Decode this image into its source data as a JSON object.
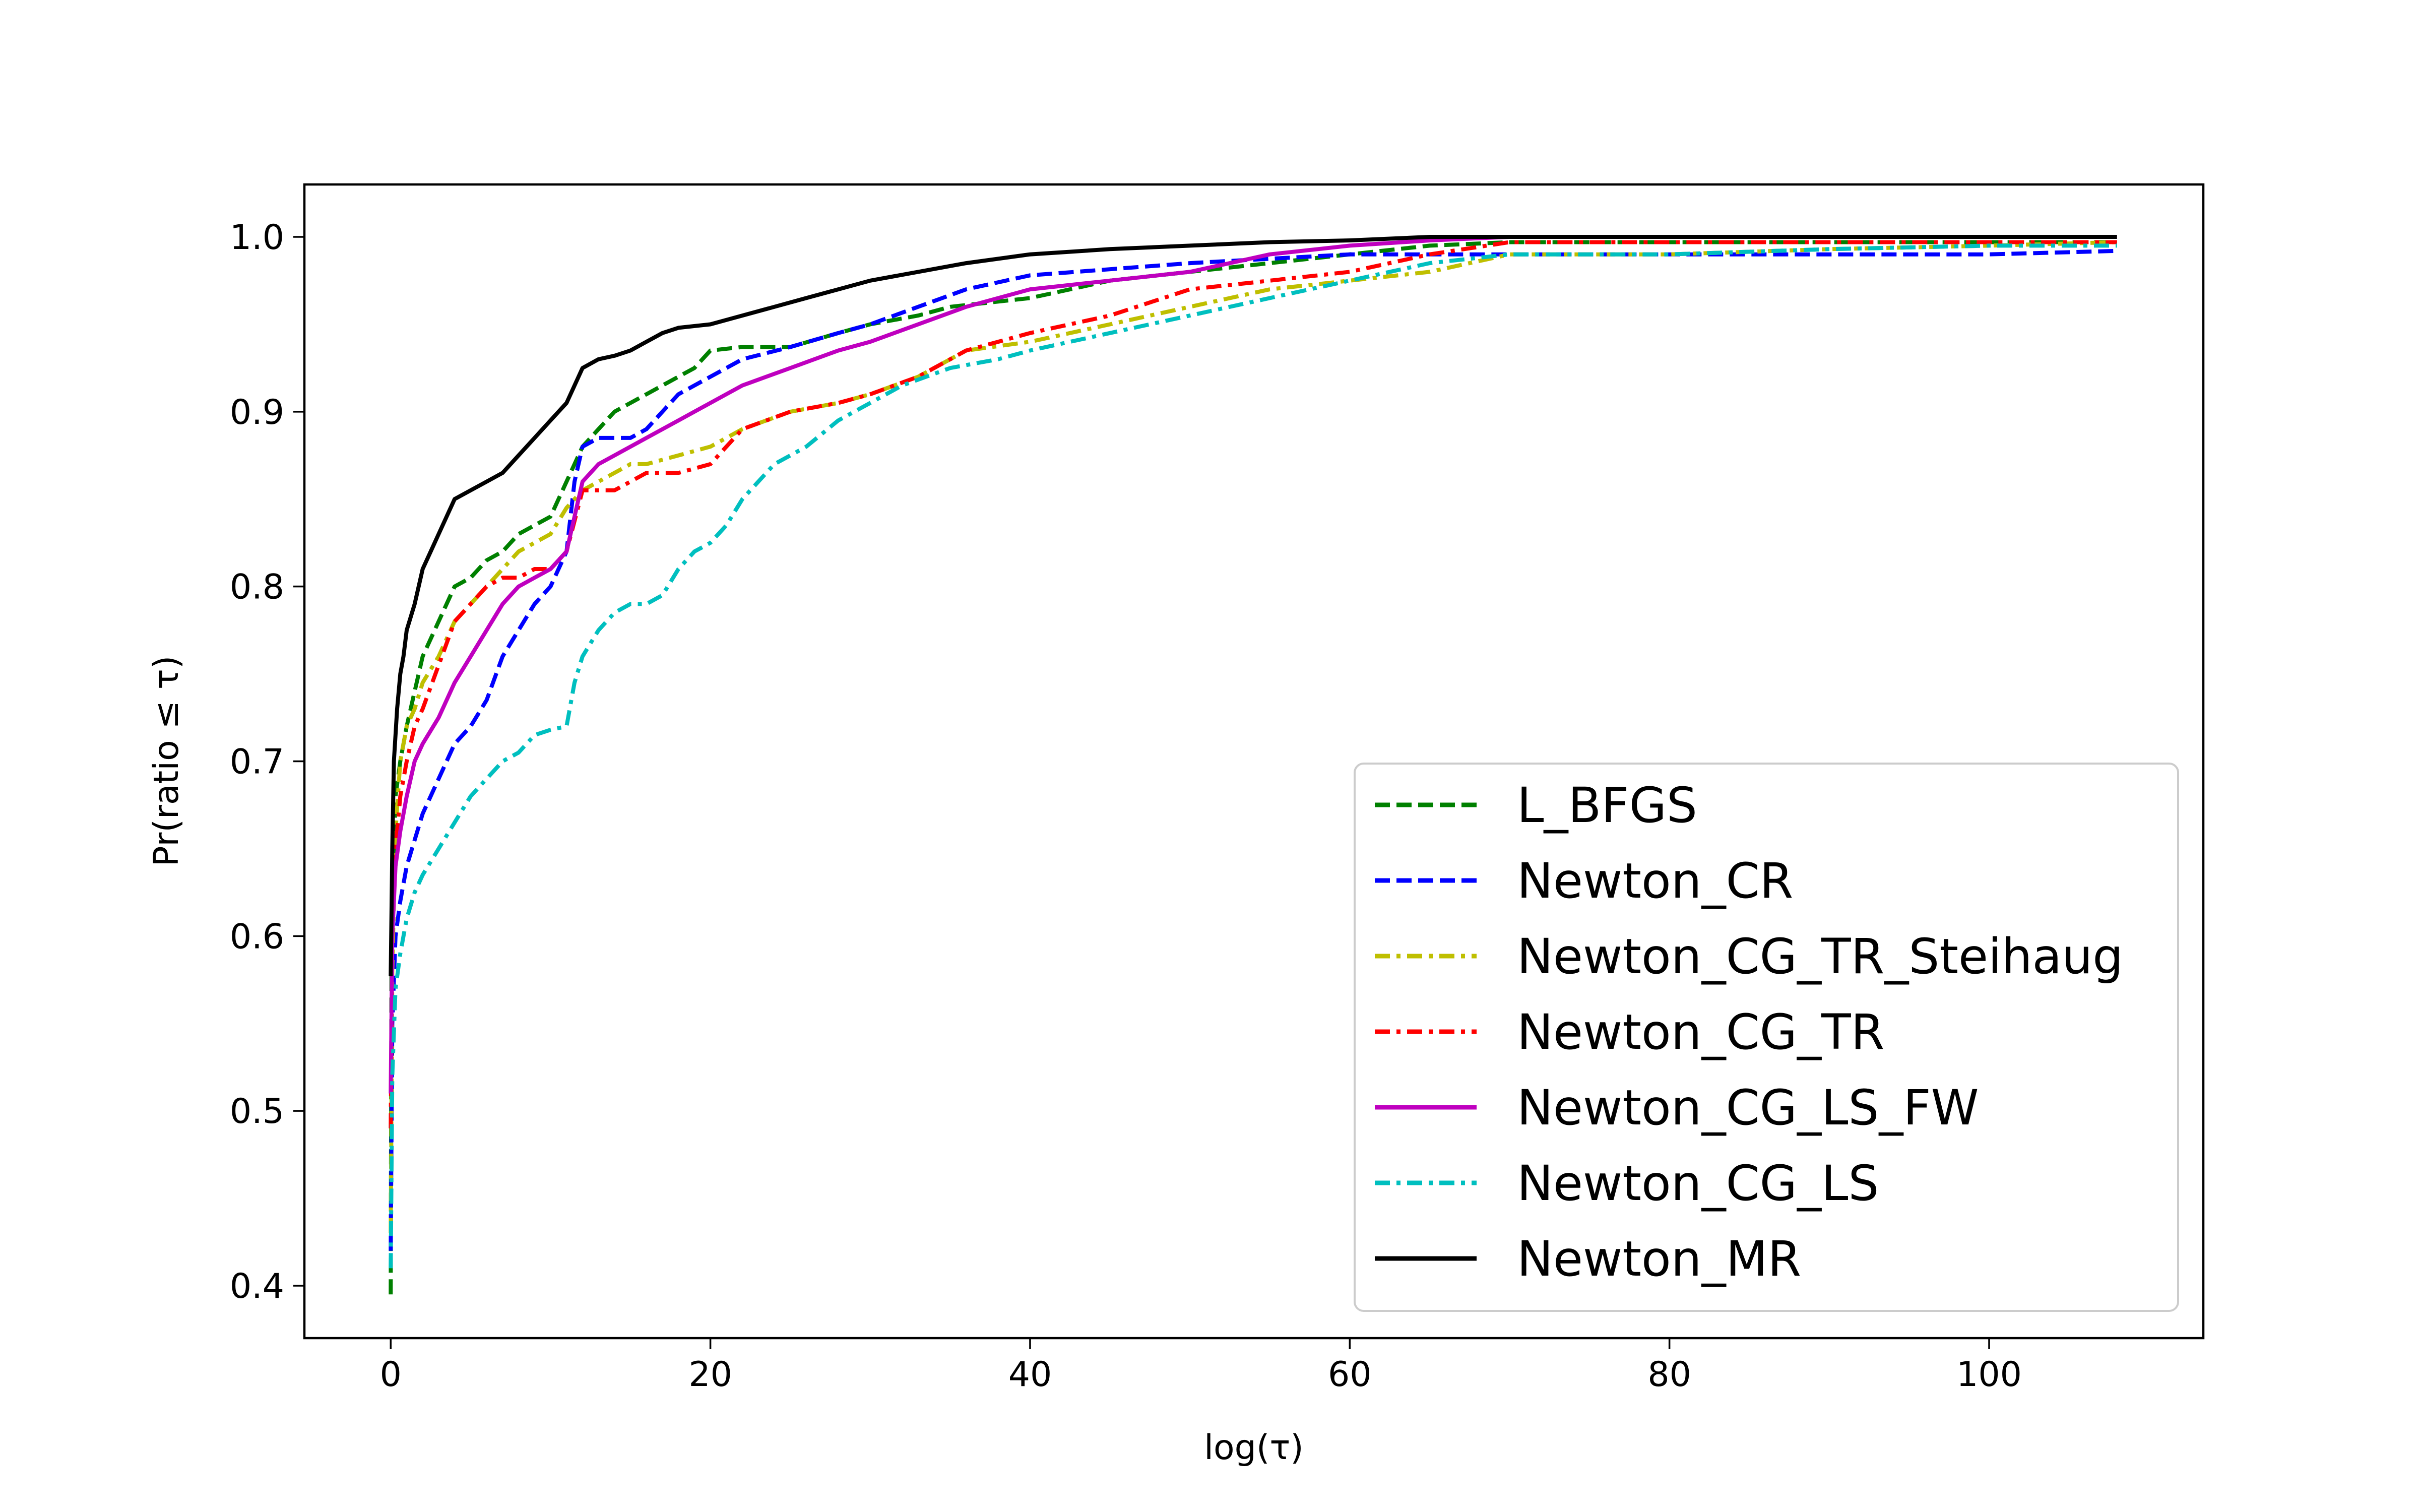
{
  "chart_data": {
    "type": "line",
    "xlabel": "log(τ)",
    "ylabel": "Pr(ratio ≤ τ)",
    "xlim": [
      -5.4,
      113.4
    ],
    "ylim": [
      0.37,
      1.03
    ],
    "xticks": [
      0,
      20,
      40,
      60,
      80,
      100
    ],
    "yticks": [
      0.4,
      0.5,
      0.6,
      0.7,
      0.8,
      0.9,
      1.0
    ],
    "xtick_labels": [
      "0",
      "20",
      "40",
      "60",
      "80",
      "100"
    ],
    "ytick_labels": [
      "0.4",
      "0.5",
      "0.6",
      "0.7",
      "0.8",
      "0.9",
      "1.0"
    ],
    "grid": false,
    "legend_position": "lower-right",
    "series": [
      {
        "name": "L_BFGS",
        "color": "#008000",
        "dash": "dashed",
        "x": [
          0,
          0.05,
          0.3,
          0.6,
          1,
          1.5,
          2,
          3,
          4,
          5,
          6,
          7,
          8,
          9,
          10,
          11,
          12,
          13,
          14,
          15,
          16,
          17,
          18,
          19,
          20,
          22,
          25,
          28,
          30,
          33,
          35,
          40,
          45,
          50,
          55,
          60,
          65,
          70,
          80,
          90,
          100,
          108
        ],
        "y": [
          0.395,
          0.6,
          0.68,
          0.7,
          0.72,
          0.74,
          0.76,
          0.78,
          0.8,
          0.805,
          0.815,
          0.82,
          0.83,
          0.835,
          0.84,
          0.86,
          0.88,
          0.89,
          0.9,
          0.905,
          0.91,
          0.915,
          0.92,
          0.925,
          0.935,
          0.937,
          0.937,
          0.945,
          0.95,
          0.955,
          0.96,
          0.965,
          0.975,
          0.98,
          0.985,
          0.99,
          0.995,
          0.997,
          0.997,
          0.997,
          0.997,
          0.997
        ]
      },
      {
        "name": "Newton_CR",
        "color": "#0000ff",
        "dash": "dashed",
        "x": [
          0,
          0.1,
          0.3,
          0.6,
          1,
          2,
          3,
          4,
          5,
          6,
          7,
          8,
          9,
          10,
          11,
          11.5,
          12,
          13,
          14,
          15,
          16,
          18,
          20,
          22,
          25,
          28,
          30,
          33,
          36,
          40,
          50,
          60,
          70,
          80,
          90,
          100,
          108
        ],
        "y": [
          0.42,
          0.55,
          0.6,
          0.62,
          0.64,
          0.67,
          0.69,
          0.71,
          0.72,
          0.735,
          0.76,
          0.775,
          0.79,
          0.8,
          0.82,
          0.86,
          0.88,
          0.885,
          0.885,
          0.885,
          0.89,
          0.91,
          0.92,
          0.93,
          0.937,
          0.945,
          0.95,
          0.96,
          0.97,
          0.978,
          0.985,
          0.99,
          0.99,
          0.99,
          0.99,
          0.99,
          0.992
        ]
      },
      {
        "name": "Newton_CG_TR_Steihaug",
        "color": "#bfbf00",
        "dash": "dashdot",
        "x": [
          0,
          0.1,
          0.3,
          0.6,
          1,
          1.5,
          2,
          3,
          4,
          5,
          6,
          7,
          8,
          9,
          10,
          11,
          12,
          13,
          14,
          15,
          16,
          18,
          20,
          22,
          25,
          28,
          30,
          33,
          36,
          40,
          45,
          50,
          55,
          60,
          65,
          70,
          80,
          90,
          100,
          108
        ],
        "y": [
          0.43,
          0.58,
          0.66,
          0.7,
          0.72,
          0.73,
          0.745,
          0.76,
          0.78,
          0.79,
          0.8,
          0.81,
          0.82,
          0.825,
          0.83,
          0.845,
          0.855,
          0.86,
          0.865,
          0.87,
          0.87,
          0.875,
          0.88,
          0.89,
          0.9,
          0.905,
          0.91,
          0.92,
          0.935,
          0.94,
          0.95,
          0.96,
          0.97,
          0.975,
          0.98,
          0.99,
          0.99,
          0.993,
          0.995,
          0.997
        ]
      },
      {
        "name": "Newton_CG_TR",
        "color": "#ff0000",
        "dash": "dashdot",
        "x": [
          0,
          0.1,
          0.3,
          0.6,
          1,
          1.5,
          2,
          3,
          4,
          5,
          6,
          7,
          8,
          9,
          10,
          11,
          12,
          13,
          14,
          15,
          16,
          18,
          20,
          22,
          25,
          28,
          30,
          33,
          36,
          40,
          45,
          50,
          55,
          60,
          65,
          70,
          80,
          90,
          100,
          108
        ],
        "y": [
          0.49,
          0.6,
          0.65,
          0.68,
          0.7,
          0.72,
          0.73,
          0.755,
          0.78,
          0.79,
          0.8,
          0.805,
          0.805,
          0.81,
          0.81,
          0.82,
          0.855,
          0.855,
          0.855,
          0.86,
          0.865,
          0.865,
          0.87,
          0.89,
          0.9,
          0.905,
          0.91,
          0.92,
          0.935,
          0.945,
          0.955,
          0.97,
          0.975,
          0.98,
          0.99,
          0.997,
          0.997,
          0.997,
          0.997,
          0.997
        ]
      },
      {
        "name": "Newton_CG_LS_FW",
        "color": "#bf00bf",
        "dash": "solid",
        "x": [
          0,
          0.1,
          0.3,
          0.6,
          1,
          1.5,
          2,
          3,
          4,
          5,
          6,
          7,
          8,
          9,
          10,
          11,
          12,
          13,
          14,
          15,
          16,
          18,
          20,
          22,
          25,
          28,
          30,
          33,
          36,
          40,
          45,
          50,
          55,
          60,
          65,
          70,
          80,
          90,
          100,
          108
        ],
        "y": [
          0.51,
          0.6,
          0.64,
          0.66,
          0.68,
          0.7,
          0.71,
          0.725,
          0.745,
          0.76,
          0.775,
          0.79,
          0.8,
          0.805,
          0.81,
          0.82,
          0.86,
          0.87,
          0.875,
          0.88,
          0.885,
          0.895,
          0.905,
          0.915,
          0.925,
          0.935,
          0.94,
          0.95,
          0.96,
          0.97,
          0.975,
          0.98,
          0.99,
          0.995,
          0.998,
          1.0,
          1.0,
          1.0,
          1.0,
          1.0
        ]
      },
      {
        "name": "Newton_CG_LS",
        "color": "#00bfbf",
        "dash": "dashdot",
        "x": [
          0,
          0.1,
          0.3,
          0.6,
          1,
          1.5,
          2,
          3,
          4,
          5,
          6,
          7,
          8,
          9,
          10,
          11,
          11.5,
          12,
          13,
          14,
          15,
          16,
          17,
          18,
          19,
          20,
          21,
          22,
          23,
          24,
          25,
          26,
          28,
          30,
          32,
          35,
          38,
          40,
          45,
          50,
          55,
          60,
          65,
          70,
          80,
          90,
          100,
          108
        ],
        "y": [
          0.41,
          0.52,
          0.57,
          0.59,
          0.61,
          0.625,
          0.635,
          0.65,
          0.665,
          0.68,
          0.69,
          0.7,
          0.705,
          0.715,
          0.718,
          0.72,
          0.745,
          0.76,
          0.775,
          0.785,
          0.79,
          0.79,
          0.795,
          0.81,
          0.82,
          0.825,
          0.835,
          0.85,
          0.86,
          0.87,
          0.875,
          0.88,
          0.895,
          0.905,
          0.915,
          0.925,
          0.93,
          0.935,
          0.945,
          0.955,
          0.965,
          0.975,
          0.985,
          0.99,
          0.99,
          0.993,
          0.995,
          0.995
        ]
      },
      {
        "name": "Newton_MR",
        "color": "#000000",
        "dash": "solid",
        "x": [
          0,
          0.1,
          0.2,
          0.4,
          0.6,
          0.8,
          1,
          1.5,
          2,
          2.5,
          3,
          4,
          5,
          6,
          7,
          8,
          9,
          10,
          11,
          12,
          13,
          14,
          15,
          16,
          17,
          18,
          20,
          22,
          24,
          26,
          28,
          30,
          33,
          36,
          40,
          45,
          50,
          55,
          60,
          65,
          70,
          80,
          90,
          100,
          108
        ],
        "y": [
          0.577,
          0.65,
          0.7,
          0.73,
          0.75,
          0.76,
          0.775,
          0.79,
          0.81,
          0.82,
          0.83,
          0.85,
          0.855,
          0.86,
          0.865,
          0.875,
          0.885,
          0.895,
          0.905,
          0.925,
          0.93,
          0.932,
          0.935,
          0.94,
          0.945,
          0.948,
          0.95,
          0.955,
          0.96,
          0.965,
          0.97,
          0.975,
          0.98,
          0.985,
          0.99,
          0.993,
          0.995,
          0.997,
          0.998,
          1.0,
          1.0,
          1.0,
          1.0,
          1.0,
          1.0
        ]
      }
    ]
  }
}
